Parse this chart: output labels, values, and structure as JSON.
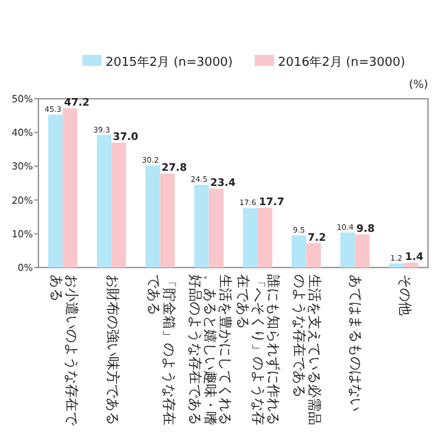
{
  "chart_data": {
    "type": "bar",
    "categories": [
      "お小遣いのような存在である",
      "お財布の強い味方である",
      "「貯金箱」のような存在である",
      "生活を豊かにしてくれる、あると嬉しい趣味・嗜好品のような存在である",
      "誰にも知られずに作れる「へそくり」のような存在である",
      "生活を支えている必需品のような存在である",
      "あてはまるものはない",
      "その他"
    ],
    "series": [
      {
        "name": "2015年2月 (n=3000)",
        "color": "#b3e6f7",
        "values": [
          45.3,
          39.3,
          30.2,
          24.5,
          17.6,
          9.5,
          10.4,
          1.2
        ],
        "value_labels": [
          "45.3",
          "39.3",
          "30.2",
          "24.5",
          "17.6",
          "9.5",
          "10.4",
          "1.2"
        ]
      },
      {
        "name": "2016年2月 (n=3000)",
        "color": "#f9c6cb",
        "values": [
          47.2,
          37.0,
          27.8,
          23.4,
          17.7,
          7.2,
          9.8,
          1.4
        ],
        "value_labels": [
          "47.2",
          "37.0",
          "27.8",
          "23.4",
          "17.7",
          "7.2",
          "9.8",
          "1.4"
        ]
      }
    ],
    "ylim": [
      0,
      50
    ],
    "yticks": [
      {
        "value": 0,
        "label": "0%"
      },
      {
        "value": 10,
        "label": "10%"
      },
      {
        "value": 20,
        "label": "20%"
      },
      {
        "value": 30,
        "label": "30%"
      },
      {
        "value": 40,
        "label": "40%"
      },
      {
        "value": 50,
        "label": "50%"
      }
    ],
    "ylabel": "(%)",
    "legend": "top"
  }
}
